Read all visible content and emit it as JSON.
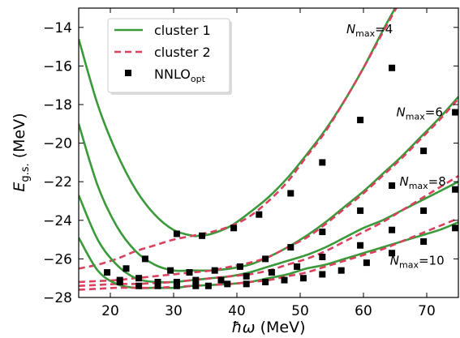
{
  "chart_data": {
    "type": "line",
    "xlabel": {
      "prefix": "ħω",
      "unit": " (MeV)"
    },
    "ylabel": {
      "main": "E",
      "sub": "g.s.",
      "unit": " (MeV)"
    },
    "xlim": [
      15,
      75
    ],
    "ylim": [
      -28,
      -13
    ],
    "xticks": [
      20,
      30,
      40,
      50,
      60,
      70
    ],
    "yticks": [
      -28,
      -26,
      -24,
      -22,
      -20,
      -18,
      -16,
      -14
    ],
    "legend": {
      "position": "top-left",
      "entries": [
        {
          "key": "cluster1",
          "label": "cluster 1",
          "style": "solid-line",
          "color": "#3a9a3a"
        },
        {
          "key": "cluster2",
          "label": "cluster 2",
          "style": "dashed-line",
          "color": "#d9415e"
        },
        {
          "key": "nnlo",
          "label_main": "NNLO",
          "label_sub": "opt",
          "style": "square-marker",
          "color": "#000000"
        }
      ]
    },
    "annotations": [
      {
        "main": "N",
        "sub": "max",
        "value": "=4",
        "x": 57.3,
        "y": -14.3
      },
      {
        "main": "N",
        "sub": "max",
        "value": "=6",
        "x": 65.2,
        "y": -18.6
      },
      {
        "main": "N",
        "sub": "max",
        "value": "=8",
        "x": 65.7,
        "y": -22.2
      },
      {
        "main": "N",
        "sub": "max",
        "value": "=10",
        "x": 64.2,
        "y": -26.3
      }
    ],
    "series": [
      {
        "nmax": 4,
        "cluster1": {
          "x": [
            15,
            18,
            21,
            24,
            27,
            30,
            33,
            34,
            36,
            39,
            42,
            45,
            48,
            51,
            54,
            57,
            60,
            63,
            66,
            69,
            72
          ],
          "y": [
            -14.6,
            -18.0,
            -20.5,
            -22.4,
            -23.7,
            -24.5,
            -24.8,
            -24.8,
            -24.7,
            -24.3,
            -23.6,
            -22.8,
            -21.8,
            -20.6,
            -19.3,
            -17.8,
            -16.1,
            -14.2,
            -12.4,
            -10.5,
            -8.5
          ]
        },
        "cluster2": {
          "x": [
            15,
            18,
            21,
            24,
            27,
            30,
            33,
            36,
            39,
            42,
            45,
            48,
            51,
            54,
            57,
            60,
            63,
            66,
            69,
            72
          ],
          "y": [
            -26.5,
            -26.3,
            -26.0,
            -25.6,
            -25.3,
            -25.0,
            -24.8,
            -24.6,
            -24.3,
            -23.8,
            -23.0,
            -22.0,
            -20.7,
            -19.4,
            -17.8,
            -16.1,
            -14.3,
            -12.5,
            -10.6,
            -8.7
          ]
        },
        "points": {
          "x": [
            30.5,
            34.5,
            39.5,
            43.5,
            48.5,
            53.5,
            59.5,
            64.5
          ],
          "y": [
            -24.7,
            -24.8,
            -24.4,
            -23.7,
            -22.6,
            -21.0,
            -18.8,
            -16.1
          ]
        }
      },
      {
        "nmax": 6,
        "cluster1": {
          "x": [
            15,
            18,
            21,
            24,
            27,
            30,
            33,
            36,
            39,
            42,
            45,
            48,
            51,
            54,
            57,
            60,
            63,
            66,
            69,
            72,
            75
          ],
          "y": [
            -19.0,
            -22.2,
            -24.3,
            -25.6,
            -26.3,
            -26.6,
            -26.6,
            -26.6,
            -26.5,
            -26.3,
            -25.9,
            -25.4,
            -24.8,
            -24.1,
            -23.3,
            -22.5,
            -21.6,
            -20.7,
            -19.7,
            -18.7,
            -17.6
          ]
        },
        "cluster2": {
          "x": [
            15,
            18,
            21,
            24,
            27,
            30,
            33,
            36,
            39,
            42,
            45,
            48,
            51,
            54,
            57,
            60,
            63,
            66,
            69,
            72,
            75
          ],
          "y": [
            -27.2,
            -27.15,
            -27.1,
            -27.0,
            -26.9,
            -26.8,
            -26.7,
            -26.6,
            -26.4,
            -26.2,
            -25.9,
            -25.4,
            -24.9,
            -24.2,
            -23.4,
            -22.6,
            -21.7,
            -20.8,
            -19.8,
            -18.8,
            -17.7
          ]
        },
        "points": {
          "x": [
            19.5,
            22.5,
            25.5,
            29.5,
            32.5,
            36.5,
            40.5,
            44.5,
            48.5,
            53.5,
            59.5,
            64.5,
            69.5,
            74.5
          ],
          "y": [
            -26.7,
            -26.5,
            -26.0,
            -26.6,
            -26.7,
            -26.6,
            -26.4,
            -26.0,
            -25.4,
            -24.6,
            -23.5,
            -22.2,
            -20.4,
            -18.4
          ]
        }
      },
      {
        "nmax": 8,
        "cluster1": {
          "x": [
            15,
            18,
            21,
            24,
            27,
            30,
            33,
            36,
            39,
            42,
            45,
            48,
            51,
            54,
            57,
            60,
            63,
            66,
            69,
            72,
            75
          ],
          "y": [
            -22.7,
            -25.0,
            -26.3,
            -27.0,
            -27.2,
            -27.2,
            -27.1,
            -27.0,
            -26.9,
            -26.7,
            -26.4,
            -26.1,
            -25.8,
            -25.4,
            -24.9,
            -24.4,
            -24.0,
            -23.5,
            -23.0,
            -22.5,
            -22.0
          ]
        },
        "cluster2": {
          "x": [
            15,
            18,
            21,
            24,
            27,
            30,
            33,
            36,
            39,
            42,
            45,
            48,
            51,
            54,
            57,
            60,
            63,
            66,
            69,
            72,
            75
          ],
          "y": [
            -27.4,
            -27.35,
            -27.3,
            -27.3,
            -27.25,
            -27.2,
            -27.1,
            -27.0,
            -26.9,
            -26.8,
            -26.6,
            -26.3,
            -26.0,
            -25.6,
            -25.1,
            -24.6,
            -24.1,
            -23.5,
            -22.9,
            -22.3,
            -21.7
          ]
        },
        "points": {
          "x": [
            21.5,
            24.5,
            27.5,
            30.5,
            33.5,
            37.5,
            41.5,
            45.5,
            49.5,
            53.5,
            59.5,
            64.5,
            69.5,
            74.5
          ],
          "y": [
            -27.1,
            -27.0,
            -27.2,
            -27.2,
            -27.1,
            -27.1,
            -26.9,
            -26.7,
            -26.4,
            -25.9,
            -25.3,
            -24.5,
            -23.5,
            -22.4
          ]
        }
      },
      {
        "nmax": 10,
        "cluster1": {
          "x": [
            15,
            18,
            21,
            24,
            27,
            30,
            33,
            36,
            39,
            42,
            45,
            48,
            51,
            54,
            57,
            60,
            63,
            66,
            69,
            72,
            75
          ],
          "y": [
            -24.9,
            -26.6,
            -27.3,
            -27.5,
            -27.5,
            -27.5,
            -27.4,
            -27.35,
            -27.3,
            -27.2,
            -27.0,
            -26.8,
            -26.5,
            -26.3,
            -26.0,
            -25.7,
            -25.4,
            -25.1,
            -24.8,
            -24.5,
            -24.1
          ]
        },
        "cluster2": {
          "x": [
            15,
            18,
            21,
            24,
            27,
            30,
            33,
            36,
            39,
            42,
            45,
            48,
            51,
            54,
            57,
            60,
            63,
            66,
            69,
            72,
            75
          ],
          "y": [
            -27.6,
            -27.55,
            -27.5,
            -27.5,
            -27.5,
            -27.45,
            -27.4,
            -27.35,
            -27.3,
            -27.2,
            -27.1,
            -26.9,
            -26.7,
            -26.4,
            -26.1,
            -25.8,
            -25.5,
            -25.1,
            -24.7,
            -24.3,
            -23.9
          ]
        },
        "points": {
          "x": [
            21.5,
            24.5,
            27.5,
            30.5,
            33.5,
            35.5,
            38.5,
            41.5,
            44.5,
            47.5,
            50.5,
            53.5,
            56.5,
            60.5,
            64.5,
            69.5,
            74.5
          ],
          "y": [
            -27.2,
            -27.4,
            -27.4,
            -27.4,
            -27.4,
            -27.4,
            -27.3,
            -27.3,
            -27.2,
            -27.1,
            -27.0,
            -26.8,
            -26.6,
            -26.2,
            -25.7,
            -25.1,
            -24.4
          ]
        }
      }
    ]
  }
}
